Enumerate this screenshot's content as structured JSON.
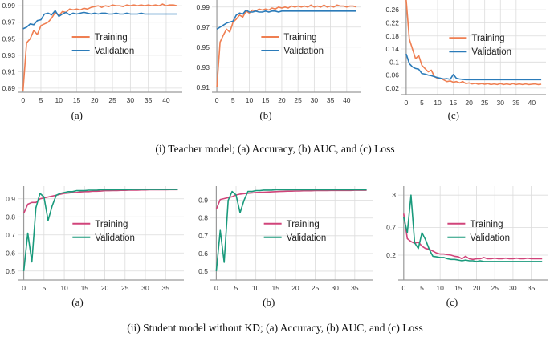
{
  "colors": {
    "teacher_training": "#ef7f52",
    "teacher_validation": "#2b7bb9",
    "student_training": "#d1447a",
    "student_validation": "#1a9a7c",
    "grid": "#dcdcdc",
    "axis": "#9a9a9a"
  },
  "captions": {
    "teacher": "(i) Teacher model; (a) Accuracy, (b) AUC, and (c) Loss",
    "student": "(ii) Student model without KD; (a) Accuracy, (b) AUC, and (c) Loss"
  },
  "chart_data": [
    {
      "id": "teacher-accuracy",
      "type": "line",
      "sublabel": "(a)",
      "palette": "teacher",
      "x": [
        0,
        1,
        2,
        3,
        4,
        5,
        6,
        7,
        8,
        9,
        10,
        11,
        12,
        13,
        14,
        15,
        16,
        17,
        18,
        19,
        20,
        21,
        22,
        23,
        24,
        25,
        26,
        27,
        28,
        29,
        30,
        31,
        32,
        33,
        34,
        35,
        36,
        37,
        38,
        39,
        40,
        41,
        42,
        43
      ],
      "xticks": [
        0,
        5,
        10,
        15,
        20,
        25,
        30,
        35,
        40
      ],
      "ytick_labels": [
        "0.89",
        "0.91",
        "0.93",
        "0.95",
        "0.97",
        "0.99"
      ],
      "ylim": [
        0.885,
        0.997
      ],
      "legend": [
        "Training",
        "Validation"
      ],
      "legend_position": "center",
      "series": [
        {
          "name": "Training",
          "values": [
            0.887,
            0.945,
            0.95,
            0.96,
            0.955,
            0.966,
            0.968,
            0.97,
            0.975,
            0.982,
            0.978,
            0.983,
            0.982,
            0.986,
            0.985,
            0.986,
            0.985,
            0.987,
            0.986,
            0.988,
            0.989,
            0.99,
            0.988,
            0.99,
            0.989,
            0.991,
            0.99,
            0.99,
            0.989,
            0.991,
            0.99,
            0.991,
            0.99,
            0.991,
            0.99,
            0.991,
            0.99,
            0.991,
            0.99,
            0.992,
            0.99,
            0.991,
            0.991,
            0.99
          ]
        },
        {
          "name": "Validation",
          "values": [
            0.962,
            0.964,
            0.968,
            0.967,
            0.972,
            0.973,
            0.98,
            0.981,
            0.979,
            0.984,
            0.977,
            0.98,
            0.982,
            0.979,
            0.981,
            0.98,
            0.981,
            0.982,
            0.981,
            0.98,
            0.981,
            0.98,
            0.981,
            0.981,
            0.98,
            0.98,
            0.981,
            0.98,
            0.98,
            0.981,
            0.98,
            0.98,
            0.98,
            0.981,
            0.98,
            0.98,
            0.98,
            0.98,
            0.98,
            0.98,
            0.98,
            0.98,
            0.98,
            0.98
          ]
        }
      ]
    },
    {
      "id": "teacher-auc",
      "type": "line",
      "sublabel": "(b)",
      "palette": "teacher",
      "x": [
        0,
        1,
        2,
        3,
        4,
        5,
        6,
        7,
        8,
        9,
        10,
        11,
        12,
        13,
        14,
        15,
        16,
        17,
        18,
        19,
        20,
        21,
        22,
        23,
        24,
        25,
        26,
        27,
        28,
        29,
        30,
        31,
        32,
        33,
        34,
        35,
        36,
        37,
        38,
        39,
        40,
        41,
        42,
        43
      ],
      "xticks": [
        0,
        5,
        10,
        15,
        20,
        25,
        30,
        35,
        40
      ],
      "ytick_labels": [
        "0.91",
        "0.93",
        "0.95",
        "0.97",
        "0.99"
      ],
      "ylim": [
        0.905,
        0.997
      ],
      "legend": [
        "Training",
        "Validation"
      ],
      "legend_position": "center",
      "series": [
        {
          "name": "Training",
          "values": [
            0.91,
            0.955,
            0.962,
            0.968,
            0.965,
            0.975,
            0.978,
            0.982,
            0.98,
            0.986,
            0.984,
            0.987,
            0.986,
            0.988,
            0.987,
            0.988,
            0.987,
            0.989,
            0.988,
            0.99,
            0.989,
            0.99,
            0.989,
            0.991,
            0.99,
            0.991,
            0.99,
            0.991,
            0.99,
            0.992,
            0.99,
            0.991,
            0.99,
            0.992,
            0.99,
            0.991,
            0.99,
            0.992,
            0.991,
            0.991,
            0.99,
            0.991,
            0.991,
            0.99
          ]
        },
        {
          "name": "Validation",
          "values": [
            0.968,
            0.97,
            0.972,
            0.974,
            0.975,
            0.976,
            0.982,
            0.984,
            0.983,
            0.987,
            0.985,
            0.985,
            0.986,
            0.985,
            0.985,
            0.986,
            0.985,
            0.986,
            0.986,
            0.985,
            0.986,
            0.986,
            0.986,
            0.986,
            0.986,
            0.986,
            0.986,
            0.986,
            0.986,
            0.986,
            0.986,
            0.986,
            0.986,
            0.986,
            0.986,
            0.986,
            0.986,
            0.986,
            0.986,
            0.986,
            0.986,
            0.986,
            0.986,
            0.986
          ]
        }
      ]
    },
    {
      "id": "teacher-loss",
      "type": "line",
      "sublabel": "(c)",
      "palette": "teacher",
      "x": [
        0,
        1,
        2,
        3,
        4,
        5,
        6,
        7,
        8,
        9,
        10,
        11,
        12,
        13,
        14,
        15,
        16,
        17,
        18,
        19,
        20,
        21,
        22,
        23,
        24,
        25,
        26,
        27,
        28,
        29,
        30,
        31,
        32,
        33,
        34,
        35,
        36,
        37,
        38,
        39,
        40,
        41,
        42,
        43
      ],
      "xticks": [
        0,
        5,
        10,
        15,
        20,
        25,
        30,
        35,
        40
      ],
      "ytick_labels": [
        "0.02",
        "0.06",
        "0.1",
        "0.14",
        "0.18",
        "0.22",
        "0.26"
      ],
      "ylim": [
        0.0,
        0.29
      ],
      "legend": [
        "Training",
        "Validation"
      ],
      "legend_position": "center",
      "series": [
        {
          "name": "Training",
          "values": [
            0.29,
            0.17,
            0.14,
            0.11,
            0.12,
            0.09,
            0.08,
            0.07,
            0.075,
            0.055,
            0.05,
            0.05,
            0.045,
            0.04,
            0.042,
            0.038,
            0.04,
            0.036,
            0.04,
            0.034,
            0.036,
            0.033,
            0.035,
            0.032,
            0.034,
            0.032,
            0.034,
            0.031,
            0.033,
            0.031,
            0.034,
            0.031,
            0.033,
            0.031,
            0.034,
            0.031,
            0.033,
            0.031,
            0.033,
            0.031,
            0.032,
            0.033,
            0.031,
            0.032
          ]
        },
        {
          "name": "Validation",
          "values": [
            0.125,
            0.095,
            0.085,
            0.08,
            0.078,
            0.065,
            0.063,
            0.06,
            0.058,
            0.055,
            0.052,
            0.05,
            0.048,
            0.049,
            0.047,
            0.062,
            0.05,
            0.048,
            0.047,
            0.046,
            0.046,
            0.046,
            0.046,
            0.046,
            0.046,
            0.046,
            0.046,
            0.046,
            0.046,
            0.046,
            0.046,
            0.046,
            0.046,
            0.046,
            0.046,
            0.046,
            0.046,
            0.046,
            0.046,
            0.046,
            0.046,
            0.046,
            0.046,
            0.046
          ]
        }
      ]
    },
    {
      "id": "student-accuracy",
      "type": "line",
      "sublabel": "(a)",
      "palette": "student",
      "x": [
        0,
        1,
        2,
        3,
        4,
        5,
        6,
        7,
        8,
        9,
        10,
        11,
        12,
        13,
        14,
        15,
        16,
        17,
        18,
        19,
        20,
        21,
        22,
        23,
        24,
        25,
        26,
        27,
        28,
        29,
        30,
        31,
        32,
        33,
        34,
        35,
        36,
        37,
        38
      ],
      "xticks": [
        0,
        5,
        10,
        15,
        20,
        25,
        30,
        35
      ],
      "ytick_labels": [
        "0.5",
        "0.6",
        "0.7",
        "0.8",
        "0.9"
      ],
      "ylim": [
        0.45,
        0.97
      ],
      "legend": [
        "Training",
        "Validation"
      ],
      "legend_position": "center",
      "series": [
        {
          "name": "Training",
          "values": [
            0.82,
            0.87,
            0.88,
            0.88,
            0.9,
            0.905,
            0.91,
            0.915,
            0.92,
            0.925,
            0.93,
            0.932,
            0.935,
            0.935,
            0.938,
            0.94,
            0.94,
            0.942,
            0.942,
            0.943,
            0.945,
            0.945,
            0.946,
            0.946,
            0.947,
            0.947,
            0.948,
            0.948,
            0.948,
            0.949,
            0.949,
            0.95,
            0.95,
            0.95,
            0.95,
            0.95,
            0.951,
            0.951,
            0.951
          ]
        },
        {
          "name": "Validation",
          "values": [
            0.5,
            0.71,
            0.55,
            0.85,
            0.93,
            0.91,
            0.78,
            0.86,
            0.92,
            0.93,
            0.935,
            0.94,
            0.94,
            0.945,
            0.945,
            0.945,
            0.948,
            0.948,
            0.948,
            0.95,
            0.95,
            0.95,
            0.95,
            0.951,
            0.951,
            0.951,
            0.951,
            0.952,
            0.952,
            0.952,
            0.952,
            0.952,
            0.952,
            0.952,
            0.952,
            0.952,
            0.952,
            0.952,
            0.952
          ]
        }
      ]
    },
    {
      "id": "student-auc",
      "type": "line",
      "sublabel": "(b)",
      "palette": "student",
      "x": [
        0,
        1,
        2,
        3,
        4,
        5,
        6,
        7,
        8,
        9,
        10,
        11,
        12,
        13,
        14,
        15,
        16,
        17,
        18,
        19,
        20,
        21,
        22,
        23,
        24,
        25,
        26,
        27,
        28,
        29,
        30,
        31,
        32,
        33,
        34,
        35,
        36,
        37,
        38
      ],
      "xticks": [
        0,
        5,
        10,
        15,
        20,
        25,
        30,
        35
      ],
      "ytick_labels": [
        "0.5",
        "0.6",
        "0.7",
        "0.8",
        "0.9"
      ],
      "ylim": [
        0.45,
        0.98
      ],
      "legend": [
        "Training",
        "Validation"
      ],
      "legend_position": "center",
      "series": [
        {
          "name": "Training",
          "values": [
            0.85,
            0.905,
            0.91,
            0.915,
            0.92,
            0.93,
            0.935,
            0.938,
            0.94,
            0.942,
            0.944,
            0.945,
            0.946,
            0.947,
            0.948,
            0.949,
            0.95,
            0.951,
            0.952,
            0.952,
            0.953,
            0.953,
            0.954,
            0.954,
            0.954,
            0.955,
            0.955,
            0.955,
            0.955,
            0.956,
            0.956,
            0.956,
            0.956,
            0.956,
            0.956,
            0.957,
            0.957,
            0.957,
            0.957
          ]
        },
        {
          "name": "Validation",
          "values": [
            0.5,
            0.73,
            0.55,
            0.9,
            0.95,
            0.93,
            0.83,
            0.9,
            0.95,
            0.95,
            0.955,
            0.955,
            0.958,
            0.958,
            0.958,
            0.96,
            0.96,
            0.96,
            0.96,
            0.96,
            0.96,
            0.96,
            0.96,
            0.96,
            0.96,
            0.96,
            0.96,
            0.96,
            0.96,
            0.96,
            0.96,
            0.96,
            0.96,
            0.96,
            0.96,
            0.96,
            0.96,
            0.96,
            0.96
          ]
        }
      ]
    },
    {
      "id": "student-loss",
      "type": "line",
      "sublabel": "(c)",
      "palette": "student",
      "yscale": "log",
      "x": [
        0,
        1,
        2,
        3,
        4,
        5,
        6,
        7,
        8,
        9,
        10,
        11,
        12,
        13,
        14,
        15,
        16,
        17,
        18,
        19,
        20,
        21,
        22,
        23,
        24,
        25,
        26,
        27,
        28,
        29,
        30,
        31,
        32,
        33,
        34,
        35,
        36,
        37,
        38
      ],
      "xticks": [
        0,
        5,
        10,
        15,
        20,
        25,
        30,
        35
      ],
      "ytick_labels": [
        "0.2",
        "0.7",
        "3"
      ],
      "ylim": [
        0.065,
        4.5
      ],
      "legend": [
        "Training",
        "Validation"
      ],
      "legend_position": "center",
      "series": [
        {
          "name": "Training",
          "values": [
            1.3,
            0.42,
            0.37,
            0.34,
            0.36,
            0.3,
            0.27,
            0.26,
            0.24,
            0.22,
            0.21,
            0.21,
            0.205,
            0.2,
            0.19,
            0.185,
            0.17,
            0.19,
            0.17,
            0.165,
            0.17,
            0.17,
            0.18,
            0.17,
            0.17,
            0.175,
            0.17,
            0.17,
            0.175,
            0.17,
            0.17,
            0.175,
            0.17,
            0.17,
            0.175,
            0.17,
            0.17,
            0.17,
            0.17
          ]
        },
        {
          "name": "Validation",
          "values": [
            1.1,
            0.55,
            3.0,
            0.35,
            0.27,
            0.55,
            0.4,
            0.26,
            0.19,
            0.185,
            0.18,
            0.18,
            0.17,
            0.165,
            0.165,
            0.16,
            0.155,
            0.16,
            0.155,
            0.155,
            0.15,
            0.155,
            0.15,
            0.15,
            0.15,
            0.15,
            0.15,
            0.15,
            0.15,
            0.15,
            0.15,
            0.15,
            0.15,
            0.15,
            0.15,
            0.15,
            0.15,
            0.15,
            0.15
          ]
        }
      ]
    }
  ]
}
